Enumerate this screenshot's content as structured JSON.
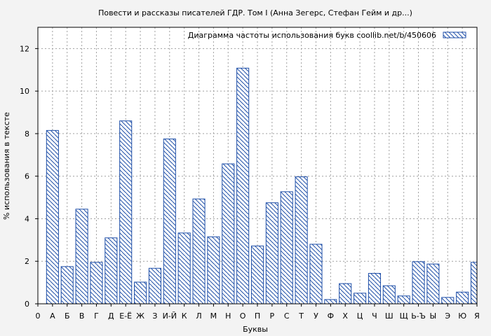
{
  "chart_data": {
    "type": "bar",
    "title": "Повести и рассказы писателей ГДР. Том I (Анна Зегерс, Стефан Гейм и др...)",
    "xlabel": "Буквы",
    "ylabel": "% использования в тексте",
    "ylim": [
      0,
      13
    ],
    "yticks": [
      "0",
      "2",
      "4",
      "6",
      "8",
      "10",
      "12"
    ],
    "grid": true,
    "legend": {
      "placement": "top-right",
      "label": "Диаграмма частоты использования букв  coollib.net/b/450606"
    },
    "bar_color": "#1f4fa8",
    "fill_pattern": "diagonal-hatch",
    "tick_labels": [
      "0",
      "А",
      "Б",
      "В",
      "Г",
      "Д",
      "Е-Ё",
      "Ж",
      "З",
      "И-Й",
      "К",
      "Л",
      "М",
      "Н",
      "О",
      "П",
      "Р",
      "С",
      "Т",
      "У",
      "Ф",
      "Х",
      "Ц",
      "Ч",
      "Ш",
      "Щ",
      "Ь-Ъ",
      "Ы",
      "Э",
      "Ю",
      "Я"
    ],
    "categories": [
      "А",
      "Б",
      "В",
      "Г",
      "Д",
      "Е-Ё",
      "Ж",
      "З",
      "И-Й",
      "К",
      "Л",
      "М",
      "Н",
      "О",
      "П",
      "Р",
      "С",
      "Т",
      "У",
      "Ф",
      "Х",
      "Ц",
      "Ч",
      "Ш",
      "Щ",
      "Ь-Ъ",
      "Ы",
      "Э",
      "Ю",
      "Я"
    ],
    "values": [
      8.15,
      1.75,
      4.45,
      1.95,
      3.1,
      8.6,
      1.02,
      1.67,
      7.75,
      3.33,
      4.93,
      3.15,
      6.58,
      11.08,
      2.72,
      4.75,
      5.27,
      5.97,
      2.8,
      0.2,
      0.95,
      0.5,
      1.43,
      0.85,
      0.37,
      1.98,
      1.87,
      0.3,
      0.55,
      1.95
    ]
  }
}
